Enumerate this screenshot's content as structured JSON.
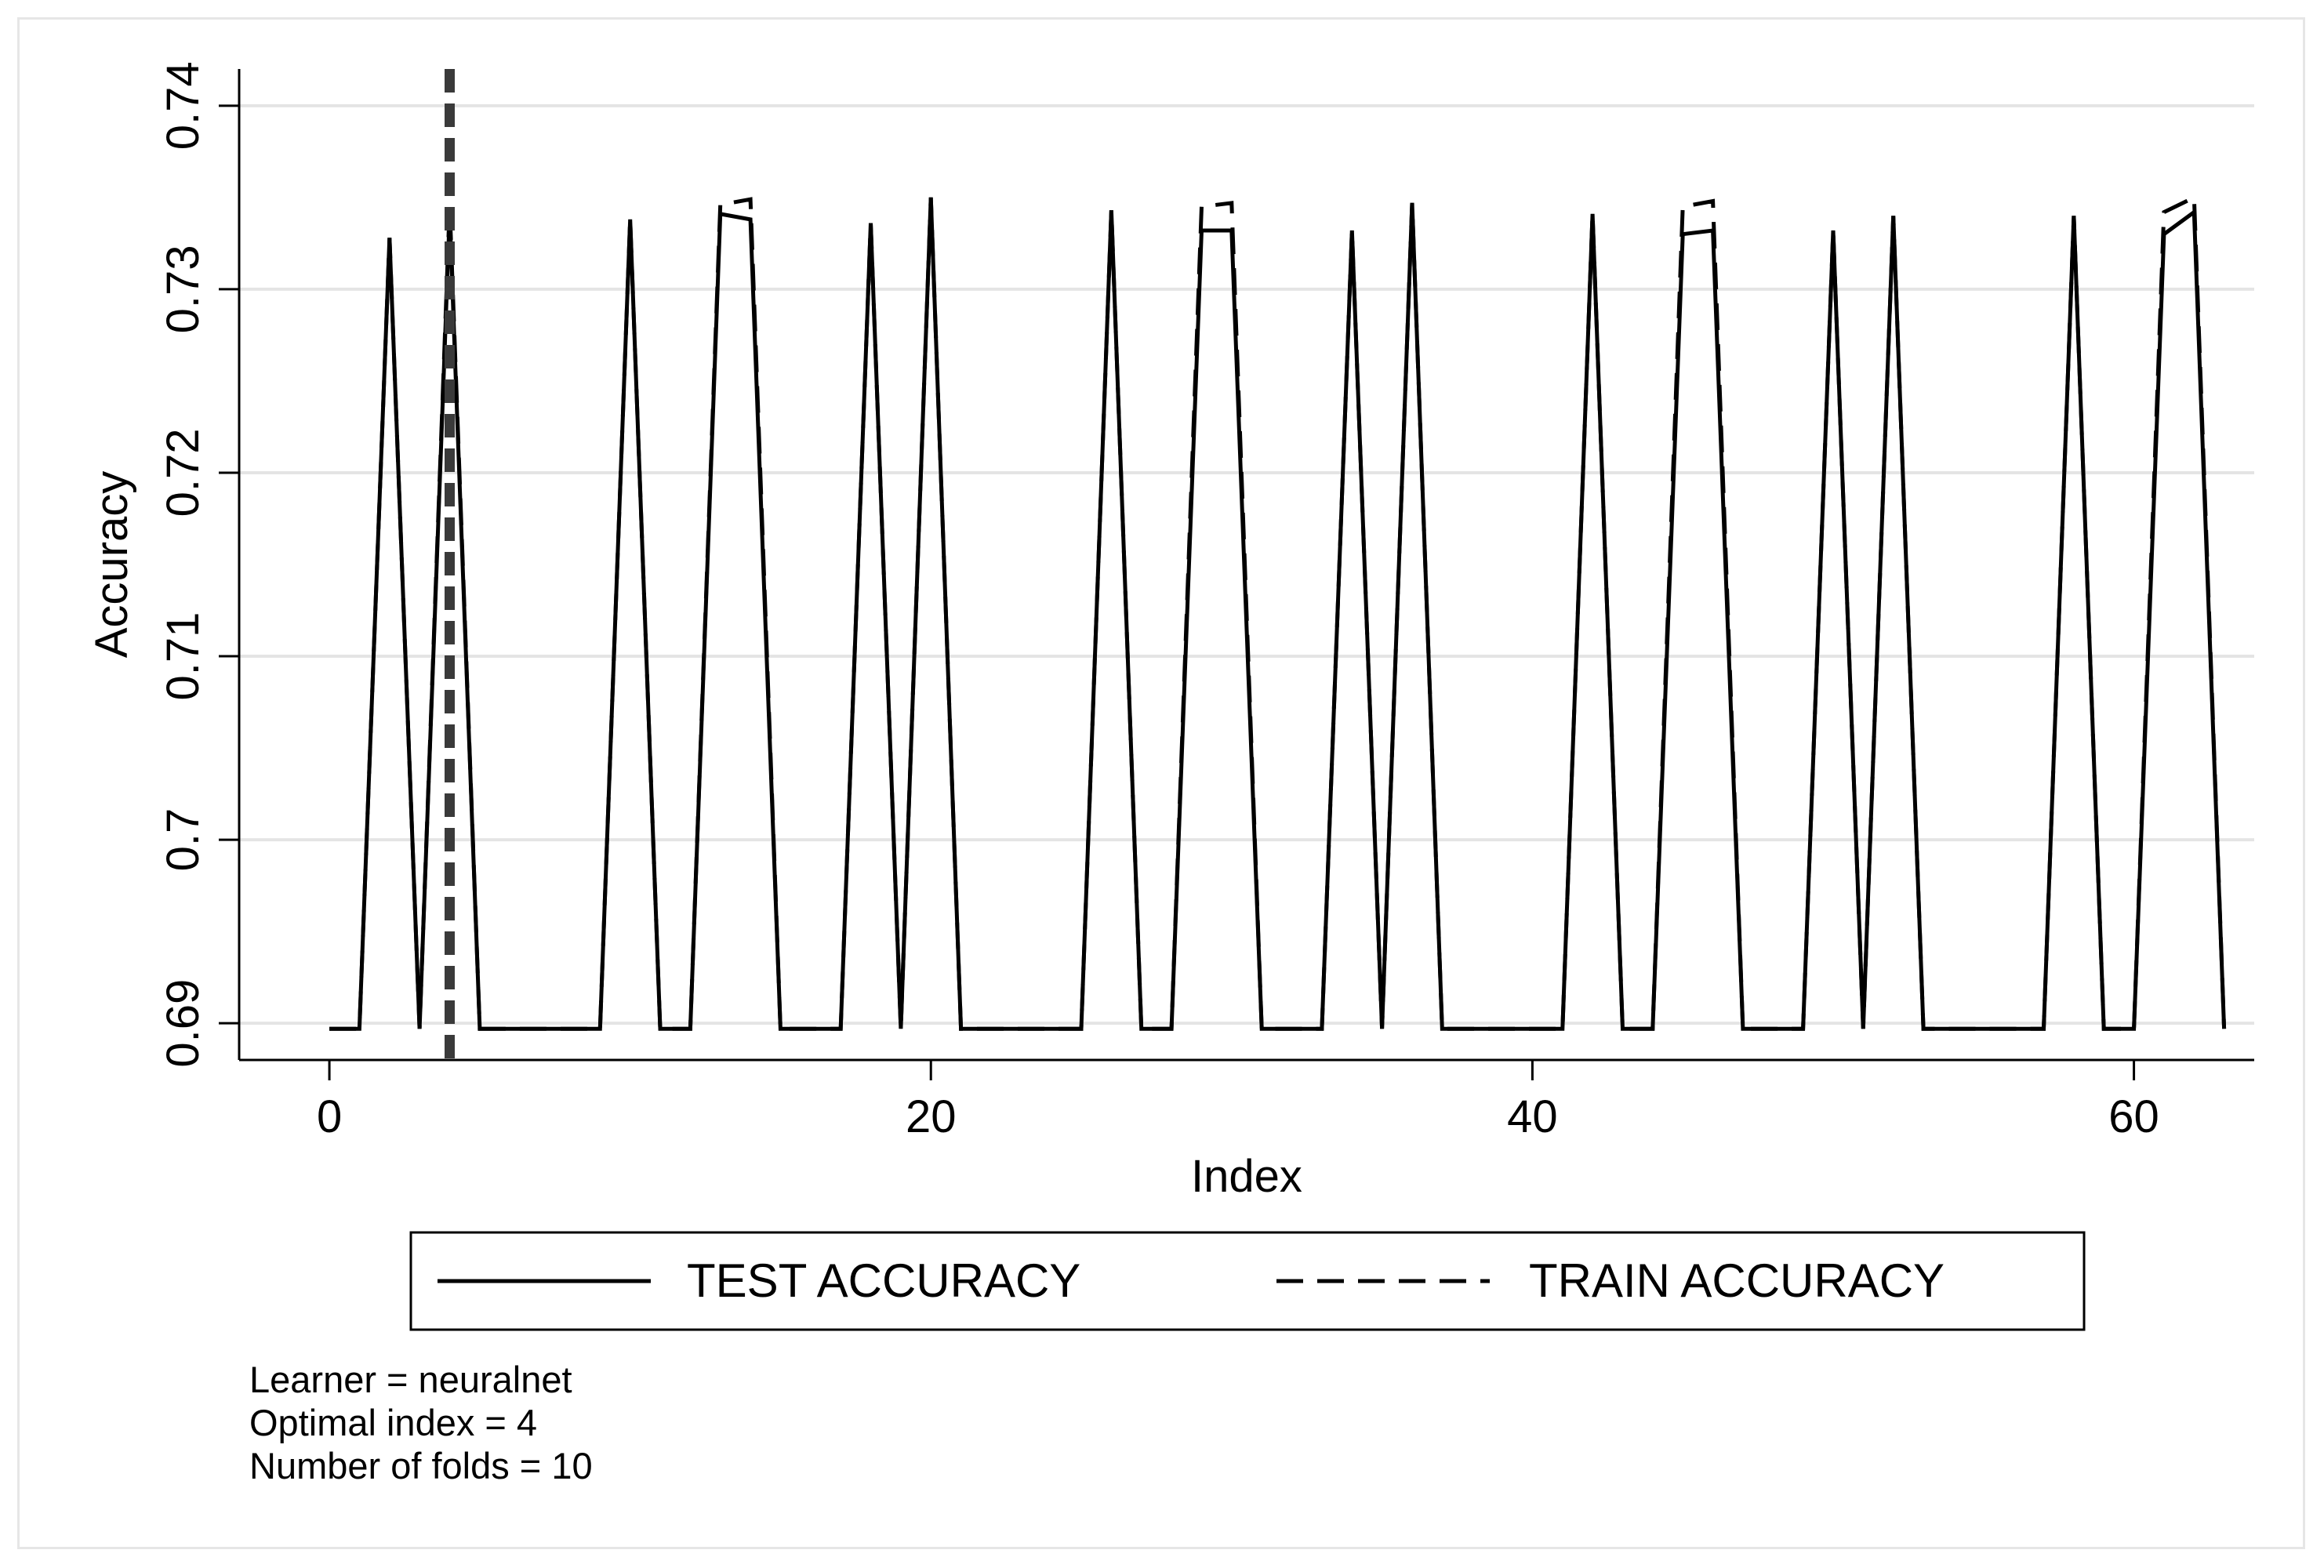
{
  "chart_data": {
    "type": "line",
    "xlabel": "Index",
    "ylabel": "Accuracy",
    "xlim": [
      -3,
      64
    ],
    "ylim": [
      0.688,
      0.742
    ],
    "x_ticks": [
      {
        "value": 0,
        "label": "0"
      },
      {
        "value": 20,
        "label": "20"
      },
      {
        "value": 40,
        "label": "40"
      },
      {
        "value": 60,
        "label": "60"
      }
    ],
    "y_ticks": [
      {
        "value": 0.69,
        "label": "0.69"
      },
      {
        "value": 0.7,
        "label": "0.7"
      },
      {
        "value": 0.71,
        "label": "0.71"
      },
      {
        "value": 0.72,
        "label": "0.72"
      },
      {
        "value": 0.73,
        "label": "0.73"
      },
      {
        "value": 0.74,
        "label": "0.74"
      }
    ],
    "grid": true,
    "legend_position": "bottom",
    "vline": {
      "x": 4
    },
    "series": [
      {
        "name": "TEST ACCURACY",
        "style": "solid",
        "color": "#000000",
        "x": [
          0,
          1,
          2,
          3,
          4,
          5,
          6,
          7,
          8,
          9,
          10,
          11,
          12,
          13,
          14,
          15,
          16,
          17,
          18,
          19,
          20,
          21,
          22,
          23,
          24,
          25,
          26,
          27,
          28,
          29,
          30,
          31,
          32,
          33,
          34,
          35,
          36,
          37,
          38,
          39,
          40,
          41,
          42,
          43,
          44,
          45,
          46,
          47,
          48,
          49,
          50,
          51,
          52,
          53,
          54,
          55,
          56,
          57,
          58,
          59,
          60,
          61,
          62,
          63
        ],
        "y": [
          0.6897,
          0.6897,
          0.7328,
          0.6897,
          0.7341,
          0.6897,
          0.6897,
          0.6897,
          0.6897,
          0.6897,
          0.7338,
          0.6897,
          0.6897,
          0.7341,
          0.7338,
          0.6897,
          0.6897,
          0.6897,
          0.7336,
          0.6897,
          0.735,
          0.6897,
          0.6897,
          0.6897,
          0.6897,
          0.6897,
          0.7343,
          0.6897,
          0.6897,
          0.7332,
          0.7332,
          0.6897,
          0.6897,
          0.6897,
          0.7332,
          0.6897,
          0.7347,
          0.6897,
          0.6897,
          0.6897,
          0.6897,
          0.6897,
          0.7341,
          0.6897,
          0.6897,
          0.733,
          0.7332,
          0.6897,
          0.6897,
          0.6897,
          0.7332,
          0.6897,
          0.734,
          0.6897,
          0.6897,
          0.6897,
          0.6897,
          0.6897,
          0.734,
          0.6897,
          0.6897,
          0.733,
          0.7342,
          0.6897
        ]
      },
      {
        "name": "TRAIN ACCURACY",
        "style": "dashed",
        "color": "#000000",
        "x": [
          0,
          1,
          2,
          3,
          4,
          5,
          6,
          7,
          8,
          9,
          10,
          11,
          12,
          13,
          14,
          15,
          16,
          17,
          18,
          19,
          20,
          21,
          22,
          23,
          24,
          25,
          26,
          27,
          28,
          29,
          30,
          31,
          32,
          33,
          34,
          35,
          36,
          37,
          38,
          39,
          40,
          41,
          42,
          43,
          44,
          45,
          46,
          47,
          48,
          49,
          50,
          51,
          52,
          53,
          54,
          55,
          56,
          57,
          58,
          59,
          60,
          61,
          62,
          63
        ],
        "y": [
          0.6897,
          0.6897,
          0.7328,
          0.6897,
          0.7346,
          0.6897,
          0.6897,
          0.6897,
          0.6897,
          0.6897,
          0.7338,
          0.6897,
          0.6897,
          0.7346,
          0.7349,
          0.6897,
          0.6897,
          0.6897,
          0.7336,
          0.6897,
          0.735,
          0.6897,
          0.6897,
          0.6897,
          0.6897,
          0.6897,
          0.7343,
          0.6897,
          0.6897,
          0.7345,
          0.7347,
          0.6897,
          0.6897,
          0.6897,
          0.7332,
          0.6897,
          0.7347,
          0.6897,
          0.6897,
          0.6897,
          0.6897,
          0.6897,
          0.7341,
          0.6897,
          0.6897,
          0.7345,
          0.7348,
          0.6897,
          0.6897,
          0.6897,
          0.7332,
          0.6897,
          0.734,
          0.6897,
          0.6897,
          0.6897,
          0.6897,
          0.6897,
          0.734,
          0.6897,
          0.6897,
          0.7342,
          0.735,
          0.6897
        ]
      }
    ]
  },
  "notes": {
    "learner": "Learner = neuralnet",
    "optimal_index": "Optimal index = 4",
    "folds": "Number of folds = 10"
  }
}
